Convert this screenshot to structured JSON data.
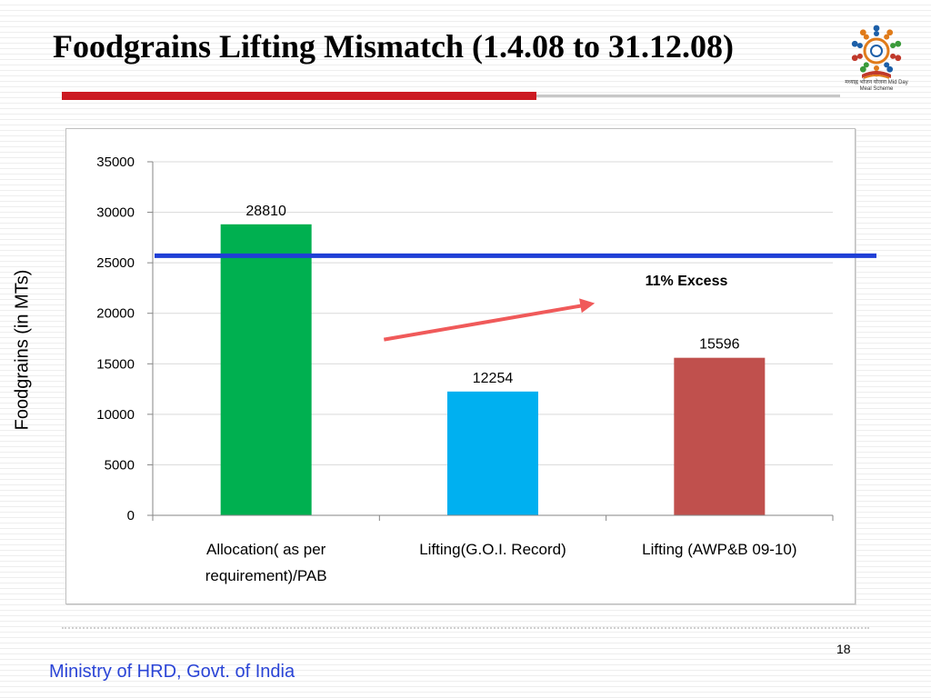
{
  "slide": {
    "title": "Foodgrains Lifting Mismatch (1.4.08 to 31.12.08)",
    "page_number": "18",
    "footer": "Ministry of HRD, Govt. of India",
    "logo_caption": "मध्याह्न भोजन योजना Mid Day Meal Scheme"
  },
  "chart_data": {
    "type": "bar",
    "title": "",
    "xlabel": "",
    "ylabel": "Foodgrains (in MTs)",
    "ylim": [
      0,
      35000
    ],
    "yticks": [
      0,
      5000,
      10000,
      15000,
      20000,
      25000,
      30000,
      35000
    ],
    "grid": true,
    "categories": [
      "Allocation( as per requirement)/PAB",
      "Lifting(G.O.I. Record)",
      "Lifting (AWP&B 09-10)"
    ],
    "category_lines": [
      [
        "Allocation( as per",
        "requirement)/PAB"
      ],
      [
        "Lifting(G.O.I. Record)"
      ],
      [
        "Lifting (AWP&B 09-10)"
      ]
    ],
    "values": [
      28810,
      12254,
      15596
    ],
    "data_labels": [
      "28810",
      "12254",
      "15596"
    ],
    "bar_colors": [
      "#00b050",
      "#00b0f0",
      "#c0504d"
    ],
    "reference_line": {
      "value": 25700,
      "color": "#1f3fd6"
    },
    "annotation": {
      "text": "11% Excess",
      "color": "#f05a5a",
      "arrow_from": [
        1.02,
        17400
      ],
      "arrow_to": [
        1.95,
        21000
      ]
    }
  }
}
